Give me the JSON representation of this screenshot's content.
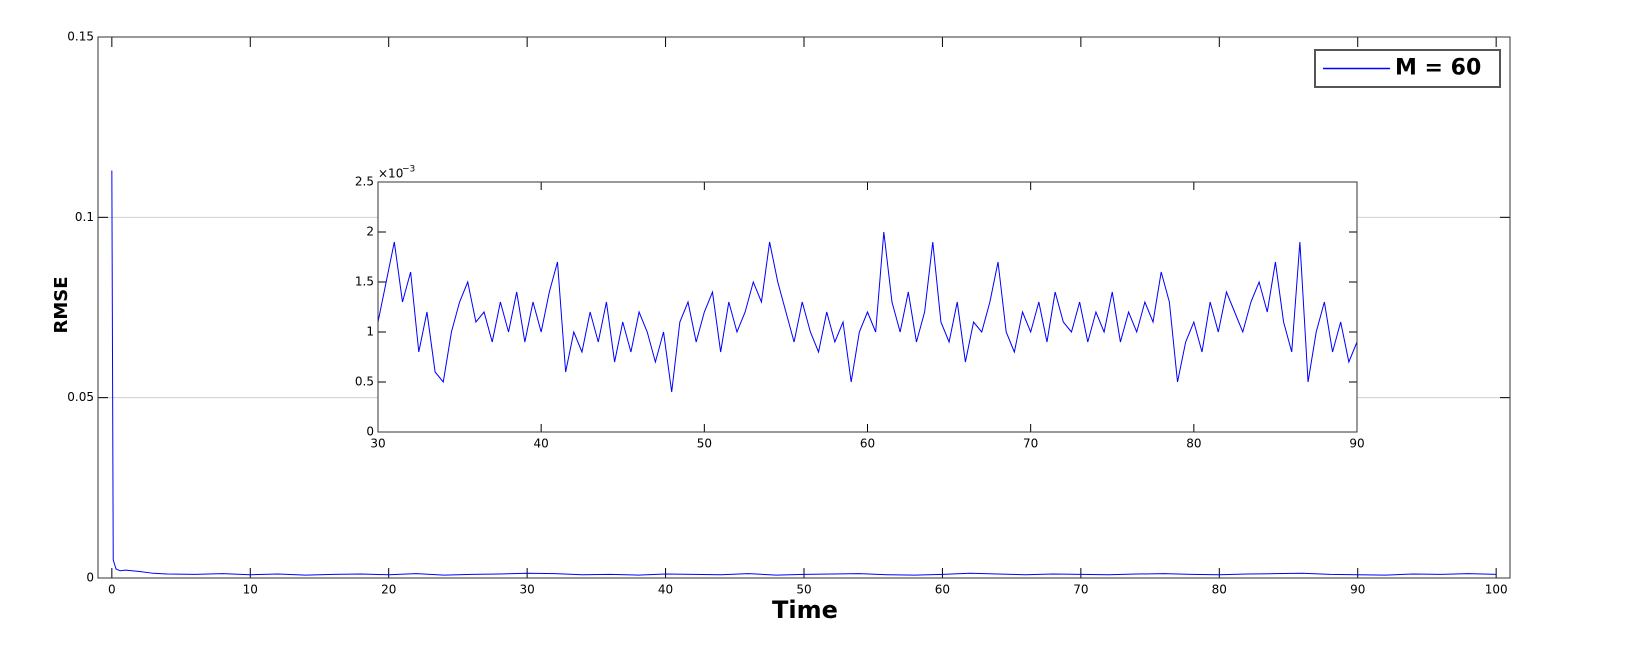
{
  "chart_data": [
    {
      "type": "line",
      "xlabel": "Time",
      "ylabel": "RMSE",
      "x": [
        0,
        0.1,
        0.3,
        0.6,
        1,
        2,
        3,
        4,
        6,
        8,
        10,
        12,
        14,
        16,
        18,
        20,
        22,
        24,
        26,
        28,
        30,
        32,
        34,
        36,
        38,
        40,
        42,
        44,
        46,
        48,
        50,
        52,
        54,
        56,
        58,
        60,
        62,
        64,
        66,
        68,
        70,
        72,
        74,
        76,
        78,
        80,
        82,
        84,
        86,
        88,
        90,
        92,
        94,
        96,
        98,
        100
      ],
      "series": [
        {
          "name": "M = 60",
          "color": "#0000ff",
          "values": [
            0.113,
            0.005,
            0.0025,
            0.002,
            0.0022,
            0.0018,
            0.0013,
            0.0011,
            0.001,
            0.0012,
            0.0009,
            0.0011,
            0.0008,
            0.001,
            0.0011,
            0.0009,
            0.0012,
            0.0008,
            0.001,
            0.0011,
            0.0013,
            0.0012,
            0.0009,
            0.001,
            0.0008,
            0.0011,
            0.001,
            0.0009,
            0.0012,
            0.0008,
            0.001,
            0.0011,
            0.0012,
            0.0009,
            0.0008,
            0.001,
            0.0013,
            0.0011,
            0.0009,
            0.0011,
            0.001,
            0.0009,
            0.0011,
            0.0012,
            0.001,
            0.0009,
            0.0011,
            0.0012,
            0.0013,
            0.001,
            0.0009,
            0.0008,
            0.0011,
            0.001,
            0.0012,
            0.001
          ]
        }
      ],
      "xlim": [
        -1,
        101
      ],
      "xticks": [
        0,
        10,
        20,
        30,
        40,
        50,
        60,
        70,
        80,
        90,
        100
      ],
      "ylim": [
        0,
        0.15
      ],
      "yticks": [
        0,
        0.05,
        0.1,
        0.15
      ],
      "grid": true,
      "legend": "upper right"
    },
    {
      "type": "line",
      "color": "#0000ff",
      "y_exponent": {
        "base": "×10",
        "power": "−3"
      },
      "x": [
        30,
        30.5,
        31,
        31.5,
        32,
        32.5,
        33,
        33.5,
        34,
        34.5,
        35,
        35.5,
        36,
        36.5,
        37,
        37.5,
        38,
        38.5,
        39,
        39.5,
        40,
        40.5,
        41,
        41.5,
        42,
        42.5,
        43,
        43.5,
        44,
        44.5,
        45,
        45.5,
        46,
        46.5,
        47,
        47.5,
        48,
        48.5,
        49,
        49.5,
        50,
        50.5,
        51,
        51.5,
        52,
        52.5,
        53,
        53.5,
        54,
        54.5,
        55,
        55.5,
        56,
        56.5,
        57,
        57.5,
        58,
        58.5,
        59,
        59.5,
        60,
        60.5,
        61,
        61.5,
        62,
        62.5,
        63,
        63.5,
        64,
        64.5,
        65,
        65.5,
        66,
        66.5,
        67,
        67.5,
        68,
        68.5,
        69,
        69.5,
        70,
        70.5,
        71,
        71.5,
        72,
        72.5,
        73,
        73.5,
        74,
        74.5,
        75,
        75.5,
        76,
        76.5,
        77,
        77.5,
        78,
        78.5,
        79,
        79.5,
        80,
        80.5,
        81,
        81.5,
        82,
        82.5,
        83,
        83.5,
        84,
        84.5,
        85,
        85.5,
        86,
        86.5,
        87,
        87.5,
        88,
        88.5,
        89,
        89.5,
        90
      ],
      "values": [
        1.1,
        1.5,
        1.9,
        1.3,
        1.6,
        0.8,
        1.2,
        0.6,
        0.5,
        1.0,
        1.3,
        1.5,
        1.1,
        1.2,
        0.9,
        1.3,
        1.0,
        1.4,
        0.9,
        1.3,
        1.0,
        1.4,
        1.7,
        0.6,
        1.0,
        0.8,
        1.2,
        0.9,
        1.3,
        0.7,
        1.1,
        0.8,
        1.2,
        1.0,
        0.7,
        1.0,
        0.4,
        1.1,
        1.3,
        0.9,
        1.2,
        1.4,
        0.8,
        1.3,
        1.0,
        1.2,
        1.5,
        1.3,
        1.9,
        1.5,
        1.2,
        0.9,
        1.3,
        1.0,
        0.8,
        1.2,
        0.9,
        1.1,
        0.5,
        1.0,
        1.2,
        1.0,
        2.0,
        1.3,
        1.0,
        1.4,
        0.9,
        1.2,
        1.9,
        1.1,
        0.9,
        1.3,
        0.7,
        1.1,
        1.0,
        1.3,
        1.7,
        1.0,
        0.8,
        1.2,
        1.0,
        1.3,
        0.9,
        1.4,
        1.1,
        1.0,
        1.3,
        0.9,
        1.2,
        1.0,
        1.4,
        0.9,
        1.2,
        1.0,
        1.3,
        1.1,
        1.6,
        1.3,
        0.5,
        0.9,
        1.1,
        0.8,
        1.3,
        1.0,
        1.4,
        1.2,
        1.0,
        1.3,
        1.5,
        1.2,
        1.7,
        1.1,
        0.8,
        1.9,
        0.5,
        1.0,
        1.3,
        0.8,
        1.1,
        0.7,
        0.9
      ],
      "xlim": [
        30,
        90
      ],
      "xticks": [
        30,
        40,
        50,
        60,
        70,
        80,
        90
      ],
      "ylim": [
        0,
        2.5
      ],
      "yticks": [
        0,
        0.5,
        1,
        1.5,
        2,
        2.5
      ],
      "grid": false
    }
  ]
}
